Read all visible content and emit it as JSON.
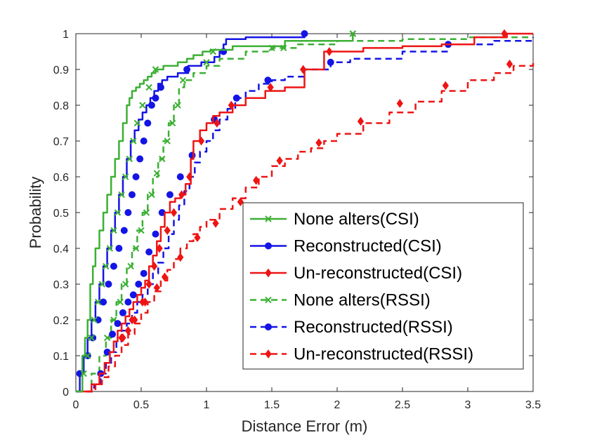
{
  "chart_data": {
    "type": "line",
    "title": "",
    "xlabel": "Distance Error (m)",
    "ylabel": "Probability",
    "xlim": [
      0,
      3.5
    ],
    "ylim": [
      0,
      1
    ],
    "xticks": [
      "0",
      "0.5",
      "1",
      "1.5",
      "2",
      "2.5",
      "3",
      "3.5"
    ],
    "yticks": [
      "0",
      "0.1",
      "0.2",
      "0.3",
      "0.4",
      "0.5",
      "0.6",
      "0.7",
      "0.8",
      "0.9",
      "1"
    ],
    "grid": false,
    "legend_position": "lower-right",
    "series": [
      {
        "name": "None alters(CSI)",
        "color": "#3cb034",
        "dash": "solid",
        "marker": "x",
        "x": [
          0.0,
          0.05,
          0.07,
          0.09,
          0.11,
          0.13,
          0.15,
          0.18,
          0.21,
          0.24,
          0.27,
          0.3,
          0.33,
          0.36,
          0.39,
          0.41,
          0.43,
          0.46,
          0.49,
          0.52,
          0.55,
          0.58,
          0.61,
          0.64,
          0.67,
          0.7,
          0.78,
          0.85,
          0.9,
          0.97,
          1.03,
          1.2,
          1.6,
          2.12
        ],
        "y": [
          0.0,
          0.1,
          0.15,
          0.2,
          0.3,
          0.35,
          0.4,
          0.45,
          0.5,
          0.55,
          0.6,
          0.65,
          0.7,
          0.75,
          0.8,
          0.82,
          0.84,
          0.85,
          0.86,
          0.87,
          0.88,
          0.89,
          0.9,
          0.9,
          0.91,
          0.91,
          0.92,
          0.93,
          0.94,
          0.95,
          0.955,
          0.965,
          0.98,
          1.0
        ],
        "markers_x": [
          0.06,
          0.09,
          0.12,
          0.14,
          0.17,
          0.2,
          0.23,
          0.26,
          0.29,
          0.32,
          0.35,
          0.38,
          0.41,
          0.44,
          0.47,
          0.51,
          0.56,
          0.61,
          1.0,
          1.05,
          1.59,
          2.12
        ],
        "markers_y": [
          0.05,
          0.1,
          0.15,
          0.2,
          0.25,
          0.3,
          0.35,
          0.4,
          0.45,
          0.5,
          0.55,
          0.6,
          0.65,
          0.7,
          0.75,
          0.8,
          0.85,
          0.9,
          0.92,
          0.95,
          0.96,
          1.0
        ]
      },
      {
        "name": "Reconstructed(CSI)",
        "color": "#1414e6",
        "dash": "solid",
        "marker": "o",
        "x": [
          0.0,
          0.03,
          0.06,
          0.09,
          0.12,
          0.15,
          0.18,
          0.21,
          0.24,
          0.27,
          0.3,
          0.33,
          0.36,
          0.39,
          0.42,
          0.45,
          0.48,
          0.51,
          0.54,
          0.57,
          0.6,
          0.63,
          0.66,
          0.7,
          0.78,
          0.86,
          0.96,
          1.06,
          1.1,
          1.13,
          1.15,
          1.3,
          1.75
        ],
        "y": [
          0.0,
          0.05,
          0.1,
          0.15,
          0.2,
          0.25,
          0.3,
          0.35,
          0.4,
          0.45,
          0.5,
          0.55,
          0.6,
          0.65,
          0.7,
          0.73,
          0.76,
          0.78,
          0.8,
          0.82,
          0.84,
          0.86,
          0.87,
          0.88,
          0.89,
          0.91,
          0.92,
          0.935,
          0.95,
          0.97,
          0.985,
          0.99,
          1.0
        ],
        "markers_x": [
          0.03,
          0.09,
          0.13,
          0.17,
          0.21,
          0.25,
          0.29,
          0.33,
          0.37,
          0.4,
          0.43,
          0.46,
          0.49,
          0.52,
          0.55,
          0.58,
          0.61,
          0.65,
          0.85,
          1.13,
          1.75
        ],
        "markers_y": [
          0.05,
          0.1,
          0.15,
          0.2,
          0.25,
          0.3,
          0.35,
          0.4,
          0.45,
          0.5,
          0.55,
          0.6,
          0.65,
          0.7,
          0.75,
          0.8,
          0.82,
          0.85,
          0.9,
          0.95,
          1.0
        ]
      },
      {
        "name": "Un-reconstructed(CSI)",
        "color": "#ee1414",
        "dash": "solid",
        "marker": "d",
        "x": [
          0.0,
          0.12,
          0.18,
          0.22,
          0.26,
          0.29,
          0.32,
          0.35,
          0.38,
          0.41,
          0.44,
          0.47,
          0.5,
          0.53,
          0.56,
          0.59,
          0.62,
          0.65,
          0.68,
          0.72,
          0.76,
          0.8,
          0.84,
          0.88,
          0.9,
          0.95,
          1.0,
          1.05,
          1.1,
          1.2,
          1.3,
          1.45,
          1.6,
          1.75,
          1.9,
          2.2,
          2.5,
          2.8,
          3.05,
          3.3,
          3.5
        ],
        "y": [
          0.0,
          0.02,
          0.05,
          0.08,
          0.11,
          0.14,
          0.17,
          0.19,
          0.21,
          0.23,
          0.25,
          0.27,
          0.29,
          0.31,
          0.35,
          0.38,
          0.42,
          0.46,
          0.5,
          0.53,
          0.54,
          0.55,
          0.58,
          0.65,
          0.7,
          0.73,
          0.75,
          0.77,
          0.78,
          0.8,
          0.82,
          0.84,
          0.85,
          0.9,
          0.95,
          0.96,
          0.965,
          0.97,
          0.99,
          1.0,
          1.0
        ],
        "markers_x": [
          0.35,
          0.4,
          0.45,
          0.51,
          0.56,
          0.6,
          0.64,
          0.7,
          0.75,
          0.81,
          0.87,
          0.96,
          1.08,
          1.19,
          1.49,
          1.74,
          1.94,
          3.28
        ],
        "markers_y": [
          0.15,
          0.17,
          0.2,
          0.25,
          0.3,
          0.35,
          0.4,
          0.45,
          0.5,
          0.55,
          0.6,
          0.7,
          0.75,
          0.8,
          0.85,
          0.9,
          0.95,
          1.0
        ]
      },
      {
        "name": "None alters(RSSI)",
        "color": "#3cb034",
        "dash": "dashed",
        "marker": "x",
        "x": [
          0.0,
          0.12,
          0.18,
          0.23,
          0.27,
          0.31,
          0.35,
          0.39,
          0.43,
          0.47,
          0.51,
          0.55,
          0.59,
          0.63,
          0.67,
          0.71,
          0.75,
          0.79,
          0.83,
          0.9,
          1.0,
          1.1,
          1.3,
          1.5,
          1.7,
          2.0,
          2.5,
          3.0,
          3.5
        ],
        "y": [
          0.0,
          0.05,
          0.1,
          0.15,
          0.2,
          0.25,
          0.3,
          0.35,
          0.4,
          0.45,
          0.5,
          0.55,
          0.6,
          0.65,
          0.7,
          0.75,
          0.8,
          0.85,
          0.87,
          0.89,
          0.91,
          0.93,
          0.95,
          0.96,
          0.97,
          0.98,
          0.985,
          0.99,
          0.99
        ],
        "markers_x": [
          0.24,
          0.29,
          0.34,
          0.38,
          0.42,
          0.46,
          0.5,
          0.54,
          0.58,
          0.62,
          0.66,
          0.7,
          0.74,
          0.78,
          0.82,
          1.5,
          2.12
        ],
        "markers_y": [
          0.15,
          0.2,
          0.25,
          0.3,
          0.35,
          0.4,
          0.45,
          0.5,
          0.55,
          0.61,
          0.65,
          0.7,
          0.75,
          0.8,
          0.87,
          0.96,
          1.0
        ]
      },
      {
        "name": "Reconstructed(RSSI)",
        "color": "#1414e6",
        "dash": "dashed",
        "marker": "o",
        "x": [
          0.0,
          0.14,
          0.19,
          0.23,
          0.27,
          0.31,
          0.35,
          0.39,
          0.43,
          0.47,
          0.51,
          0.55,
          0.59,
          0.63,
          0.67,
          0.71,
          0.75,
          0.79,
          0.83,
          0.87,
          0.91,
          0.95,
          1.0,
          1.05,
          1.1,
          1.16,
          1.22,
          1.3,
          1.4,
          1.5,
          1.6,
          1.75,
          1.95,
          2.1,
          2.5,
          2.85,
          3.2,
          3.5
        ],
        "y": [
          0.0,
          0.02,
          0.05,
          0.08,
          0.11,
          0.14,
          0.17,
          0.19,
          0.22,
          0.25,
          0.27,
          0.3,
          0.33,
          0.36,
          0.4,
          0.44,
          0.48,
          0.52,
          0.56,
          0.6,
          0.64,
          0.67,
          0.7,
          0.73,
          0.76,
          0.79,
          0.82,
          0.84,
          0.86,
          0.87,
          0.88,
          0.9,
          0.92,
          0.93,
          0.95,
          0.97,
          0.98,
          0.99
        ],
        "markers_x": [
          0.19,
          0.24,
          0.28,
          0.32,
          0.36,
          0.4,
          0.44,
          0.48,
          0.52,
          0.56,
          0.61,
          0.66,
          0.72,
          0.8,
          0.89,
          1.06,
          1.23,
          1.47,
          1.95,
          2.85
        ],
        "markers_y": [
          0.05,
          0.11,
          0.16,
          0.19,
          0.22,
          0.25,
          0.27,
          0.3,
          0.33,
          0.39,
          0.44,
          0.5,
          0.55,
          0.6,
          0.66,
          0.76,
          0.82,
          0.87,
          0.92,
          0.97
        ]
      },
      {
        "name": "Un-reconstructed(RSSI)",
        "color": "#ee1414",
        "dash": "dashed",
        "marker": "d",
        "x": [
          0.0,
          0.15,
          0.2,
          0.25,
          0.3,
          0.35,
          0.4,
          0.45,
          0.5,
          0.55,
          0.6,
          0.65,
          0.7,
          0.75,
          0.8,
          0.85,
          0.9,
          0.95,
          1.0,
          1.1,
          1.2,
          1.3,
          1.4,
          1.5,
          1.6,
          1.7,
          1.8,
          1.9,
          2.0,
          2.2,
          2.4,
          2.6,
          2.8,
          3.0,
          3.2,
          3.35,
          3.5
        ],
        "y": [
          0.0,
          0.02,
          0.04,
          0.07,
          0.1,
          0.13,
          0.16,
          0.19,
          0.22,
          0.25,
          0.28,
          0.31,
          0.34,
          0.37,
          0.4,
          0.42,
          0.44,
          0.46,
          0.48,
          0.51,
          0.54,
          0.57,
          0.6,
          0.63,
          0.65,
          0.67,
          0.68,
          0.7,
          0.72,
          0.75,
          0.78,
          0.81,
          0.84,
          0.87,
          0.89,
          0.91,
          0.93
        ],
        "markers_x": [
          0.36,
          0.43,
          0.53,
          0.62,
          0.68,
          0.8,
          0.93,
          1.07,
          1.26,
          1.38,
          1.56,
          1.86,
          2.18,
          2.48,
          2.83,
          3.32
        ],
        "markers_y": [
          0.15,
          0.2,
          0.25,
          0.29,
          0.32,
          0.375,
          0.43,
          0.47,
          0.53,
          0.59,
          0.645,
          0.695,
          0.755,
          0.805,
          0.855,
          0.915
        ]
      }
    ]
  }
}
